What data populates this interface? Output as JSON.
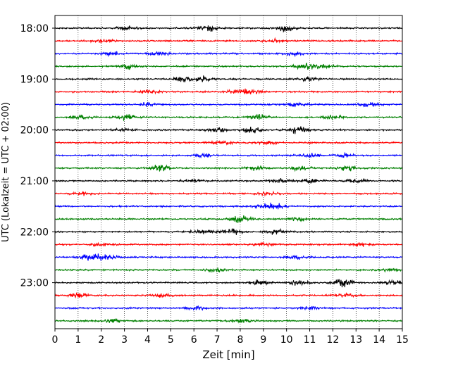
{
  "chart_data": {
    "type": "line",
    "title": "",
    "xlabel": "Zeit  [min]",
    "ylabel": "UTC (Lokalzeit = UTC + 02:00)",
    "xlim": [
      0,
      15
    ],
    "x_ticks": [
      0,
      1,
      2,
      3,
      4,
      5,
      6,
      7,
      8,
      9,
      10,
      11,
      12,
      13,
      14,
      15
    ],
    "y_tick_labels": [
      "18:00",
      "19:00",
      "20:00",
      "21:00",
      "22:00",
      "23:00"
    ],
    "traces_per_hour": 4,
    "trace_minutes": 15,
    "grid": "vertical dotted",
    "trace_colors": [
      "#000000",
      "#ff0000",
      "#0000ff",
      "#008000"
    ],
    "traces": [
      {
        "start": "18:00",
        "events": [
          [
            6.7,
            2.2
          ],
          [
            10.0,
            1.9
          ],
          [
            3.1,
            1.3
          ]
        ]
      },
      {
        "start": "18:15",
        "events": [
          [
            2.0,
            1.2
          ],
          [
            9.5,
            1.1
          ]
        ]
      },
      {
        "start": "18:30",
        "events": [
          [
            4.5,
            1.5
          ],
          [
            2.5,
            1.2
          ],
          [
            10.2,
            1.2
          ]
        ]
      },
      {
        "start": "18:45",
        "events": [
          [
            3.2,
            2.0
          ],
          [
            10.8,
            2.2
          ],
          [
            11.6,
            1.4
          ]
        ]
      },
      {
        "start": "19:00",
        "events": [
          [
            6.3,
            2.0
          ],
          [
            5.6,
            1.6
          ],
          [
            11.0,
            1.4
          ]
        ]
      },
      {
        "start": "19:15",
        "events": [
          [
            7.9,
            1.4
          ],
          [
            8.4,
            1.6
          ],
          [
            4.0,
            1.1
          ]
        ]
      },
      {
        "start": "19:30",
        "events": [
          [
            10.5,
            1.3
          ],
          [
            13.5,
            1.3
          ],
          [
            4.0,
            1.2
          ]
        ]
      },
      {
        "start": "19:45",
        "events": [
          [
            3.1,
            1.8
          ],
          [
            8.8,
            2.0
          ],
          [
            12.0,
            1.3
          ],
          [
            1.2,
            1.3
          ]
        ]
      },
      {
        "start": "20:00",
        "events": [
          [
            8.5,
            2.0
          ],
          [
            10.5,
            2.4
          ],
          [
            7.0,
            1.4
          ],
          [
            3.0,
            1.2
          ]
        ]
      },
      {
        "start": "20:15",
        "events": [
          [
            7.2,
            1.2
          ],
          [
            9.2,
            1.1
          ]
        ]
      },
      {
        "start": "20:30",
        "events": [
          [
            6.4,
            1.2
          ],
          [
            11.0,
            1.3
          ],
          [
            12.5,
            1.2
          ]
        ]
      },
      {
        "start": "20:45",
        "events": [
          [
            4.5,
            2.2
          ],
          [
            12.6,
            2.0
          ],
          [
            10.6,
            1.6
          ],
          [
            8.7,
            1.5
          ]
        ]
      },
      {
        "start": "21:00",
        "events": [
          [
            11.0,
            1.8
          ],
          [
            9.7,
            1.4
          ],
          [
            13.0,
            1.3
          ],
          [
            6.0,
            1.2
          ]
        ]
      },
      {
        "start": "21:15",
        "events": [
          [
            1.2,
            1.1
          ],
          [
            9.2,
            1.0
          ]
        ]
      },
      {
        "start": "21:30",
        "events": [
          [
            9.6,
            1.8
          ],
          [
            9.0,
            1.4
          ]
        ]
      },
      {
        "start": "21:45",
        "events": [
          [
            8.0,
            2.2
          ],
          [
            10.5,
            1.2
          ]
        ]
      },
      {
        "start": "22:00",
        "events": [
          [
            7.6,
            2.3
          ],
          [
            9.5,
            1.7
          ],
          [
            6.3,
            1.6
          ]
        ]
      },
      {
        "start": "22:15",
        "events": [
          [
            2.0,
            1.2
          ],
          [
            9.0,
            1.2
          ],
          [
            13.2,
            1.2
          ]
        ]
      },
      {
        "start": "22:30",
        "events": [
          [
            1.5,
            2.1
          ],
          [
            2.2,
            2.0
          ],
          [
            10.5,
            1.2
          ]
        ]
      },
      {
        "start": "22:45",
        "events": [
          [
            7.0,
            1.2
          ],
          [
            14.5,
            1.1
          ]
        ]
      },
      {
        "start": "23:00",
        "events": [
          [
            12.5,
            2.8
          ],
          [
            10.5,
            1.6
          ],
          [
            8.8,
            1.5
          ],
          [
            14.6,
            1.3
          ]
        ]
      },
      {
        "start": "23:15",
        "events": [
          [
            1.0,
            1.6
          ],
          [
            4.5,
            1.2
          ],
          [
            12.5,
            1.1
          ]
        ]
      },
      {
        "start": "23:30",
        "events": [
          [
            6.1,
            1.4
          ],
          [
            11.0,
            1.2
          ]
        ]
      },
      {
        "start": "23:45",
        "events": [
          [
            8.0,
            1.2
          ],
          [
            2.5,
            1.1
          ]
        ]
      }
    ]
  }
}
